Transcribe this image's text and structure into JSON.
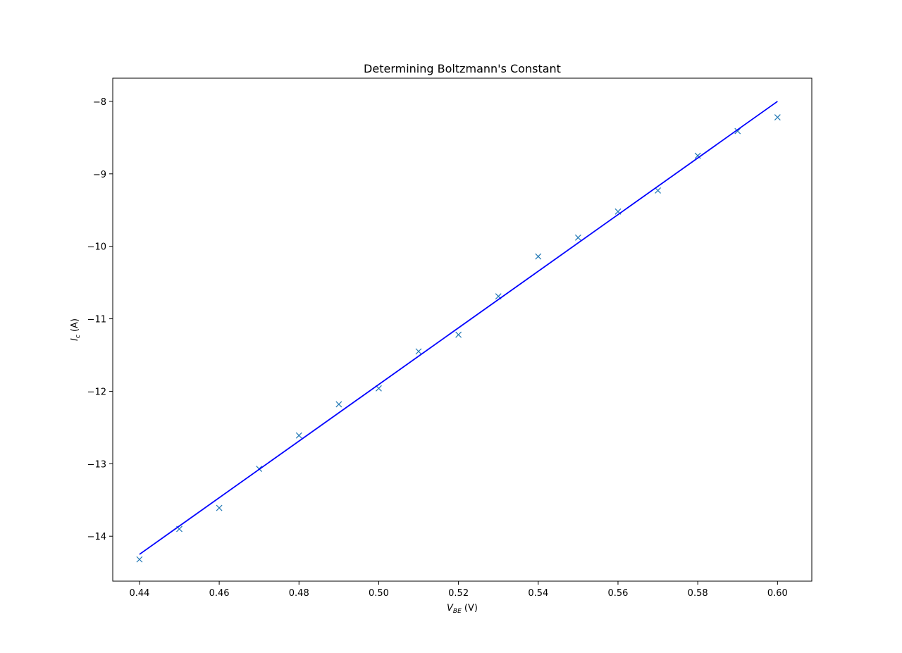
{
  "chart_data": {
    "type": "scatter",
    "title": "Determining Boltzmann's Constant",
    "xlabel": {
      "symbol": "V",
      "subscript": "BE",
      "unit": " (V)"
    },
    "ylabel": {
      "symbol": "I",
      "subscript": "c",
      "unit": " (A)"
    },
    "xlim": [
      0.4333,
      0.6086
    ],
    "ylim": [
      -14.62,
      -7.68
    ],
    "xticks": [
      0.44,
      0.46,
      0.48,
      0.5,
      0.52,
      0.54,
      0.56,
      0.58,
      0.6
    ],
    "xtick_labels": [
      "0.44",
      "0.46",
      "0.48",
      "0.50",
      "0.52",
      "0.54",
      "0.56",
      "0.58",
      "0.60"
    ],
    "yticks": [
      -14,
      -13,
      -12,
      -11,
      -10,
      -9,
      -8
    ],
    "ytick_labels": [
      "−14",
      "−13",
      "−12",
      "−11",
      "−10",
      "−9",
      "−8"
    ],
    "grid": false,
    "series": [
      {
        "kind": "markers",
        "marker": "x",
        "color": "#1f77b4",
        "x": [
          0.44,
          0.45,
          0.46,
          0.47,
          0.48,
          0.49,
          0.5,
          0.51,
          0.52,
          0.53,
          0.54,
          0.55,
          0.56,
          0.57,
          0.58,
          0.59,
          0.6
        ],
        "y": [
          -14.32,
          -13.9,
          -13.61,
          -13.07,
          -12.61,
          -12.18,
          -11.96,
          -11.45,
          -11.22,
          -10.69,
          -10.14,
          -9.88,
          -9.52,
          -9.23,
          -8.75,
          -8.41,
          -8.22
        ]
      },
      {
        "kind": "line",
        "color": "#0000ff",
        "x": [
          0.44,
          0.6
        ],
        "y": [
          -14.25,
          -8.0
        ]
      }
    ]
  }
}
